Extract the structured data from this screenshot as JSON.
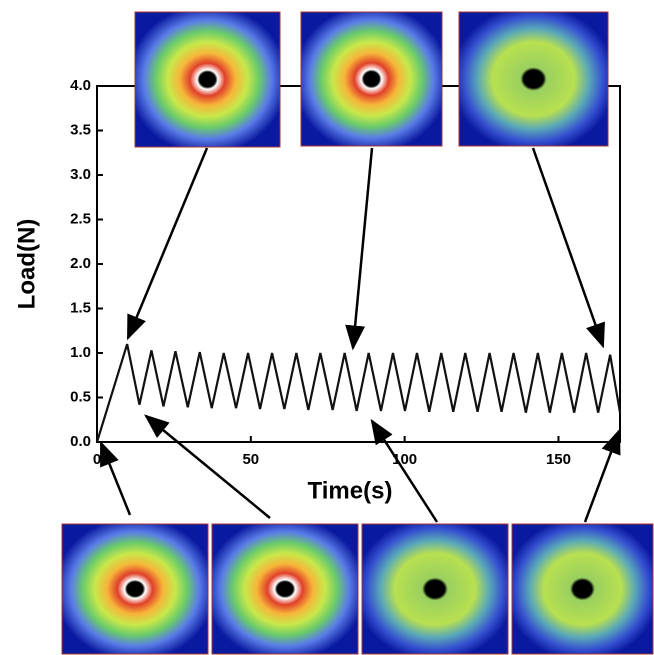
{
  "chart_data": {
    "type": "line",
    "x_label": "Time(s)",
    "y_label": "Load(N)",
    "xlim": [
      0,
      170
    ],
    "ylim": [
      0,
      4
    ],
    "xticks": [
      0,
      50,
      100,
      150
    ],
    "yticks": [
      {
        "value": 0,
        "label": "0.0"
      },
      0.5,
      {
        "value": 1,
        "label": "1.0"
      },
      1.5,
      {
        "value": 2,
        "label": "2.0"
      },
      2.5,
      {
        "value": 3,
        "label": "3.0"
      },
      3.5,
      {
        "value": 4,
        "label": "4.0"
      }
    ],
    "grid": false,
    "series": [
      {
        "color": "#111111",
        "x": [
          0,
          9.8,
          13.8,
          17.7,
          21.6,
          25.5,
          29.5,
          33.4,
          37.3,
          41.2,
          45.2,
          49.1,
          53.0,
          56.9,
          60.9,
          64.8,
          68.7,
          72.6,
          76.6,
          80.5,
          84.4,
          88.3,
          92.3,
          96.2,
          100.1,
          104.0,
          108.0,
          111.9,
          115.8,
          119.7,
          123.7,
          127.6,
          131.5,
          135.4,
          139.4,
          143.3,
          147.2,
          151.1,
          155.1,
          159.0,
          162.9,
          166.8,
          170
        ],
        "values": [
          0,
          1.1,
          0.42,
          1.03,
          0.4,
          1.02,
          0.39,
          1.01,
          0.38,
          1.0,
          0.38,
          1.0,
          0.37,
          1.0,
          0.37,
          1.0,
          0.36,
          1.0,
          0.36,
          1.0,
          0.35,
          1.0,
          0.35,
          1.0,
          0.35,
          1.0,
          0.34,
          1.0,
          0.34,
          1.0,
          0.34,
          1.0,
          0.34,
          1.0,
          0.33,
          1.0,
          0.33,
          1.0,
          0.33,
          1.0,
          0.33,
          0.98,
          0.33
        ]
      }
    ]
  }
}
